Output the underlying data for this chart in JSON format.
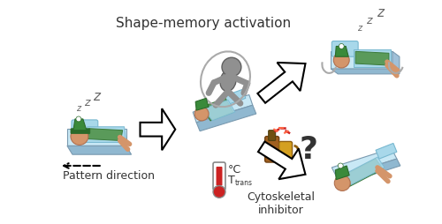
{
  "title": "Shape-memory activation",
  "label_pattern": "Pattern direction",
  "label_cytoskeletal": "Cytoskeletal\ninhibitor",
  "label_temp": "°C",
  "label_ttrans": "trans",
  "bg_color": "#ffffff",
  "text_color": "#333333",
  "pillow_color": "#a8d8ea",
  "pillow_edge": "#78b8d0",
  "bed_top_color": "#c8e8f5",
  "bed_side_color": "#a0c0d8",
  "bed_front_color": "#90b8d0",
  "bed_edge": "#7a9ab0",
  "green_body": "#5a9a5a",
  "green_edge": "#3a7a3a",
  "hat_color": "#3a8a3a",
  "hat_edge": "#2a6a2a",
  "skin_color": "#d4956a",
  "skin_edge": "#b07050",
  "gray_color": "#909090",
  "gray_edge": "#606060",
  "swirl_color": "#aaaaaa",
  "therm_red": "#cc2222",
  "therm_edge": "#888888",
  "bottle_color": "#a06020",
  "mug_color": "#d4a020",
  "spark_color": "#cc2222",
  "fig_width": 5.0,
  "fig_height": 2.54
}
